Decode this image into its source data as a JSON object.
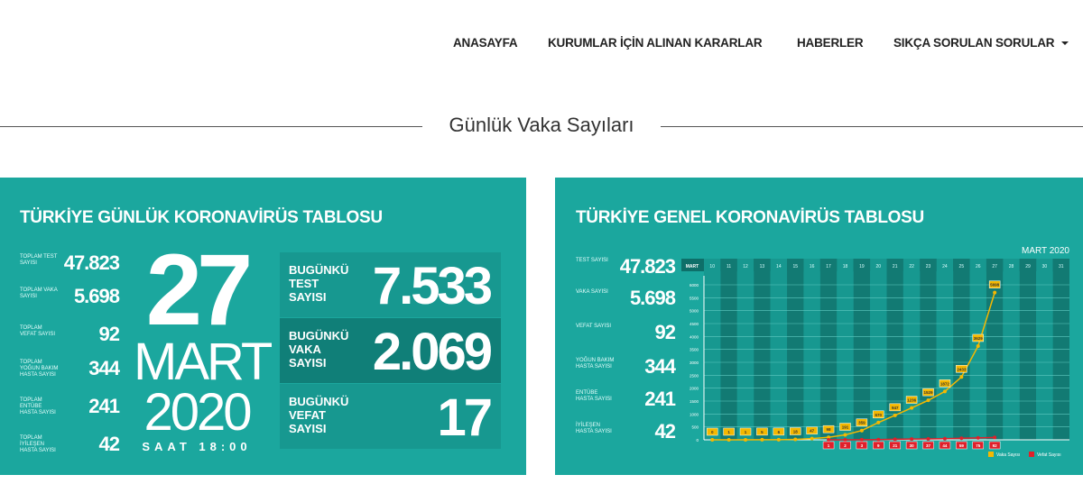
{
  "nav": {
    "items": [
      "ANASAYFA",
      "KURUMLAR İÇİN ALINAN KARARLAR",
      "HABERLER",
      "SIKÇA SORULAN SORULAR"
    ]
  },
  "section_title": "Günlük Vaka Sayıları",
  "left_card": {
    "title": "TÜRKİYE GÜNLÜK KORONAVİRÜS TABLOSU",
    "stats": [
      {
        "label": "TOPLAM TEST SAYISI",
        "value": "47.823"
      },
      {
        "label": "TOPLAM VAKA SAYISI",
        "value": "5.698"
      },
      {
        "label": "TOPLAM VEFAT SAYISI",
        "value": "92"
      },
      {
        "label": "TOPLAM YOĞUN BAKIM HASTA SAYISI",
        "value": "344"
      },
      {
        "label": "TOPLAM ENTÜBE HASTA SAYISI",
        "value": "241"
      },
      {
        "label": "TOPLAM İYİLEŞEN HASTA SAYISI",
        "value": "42"
      }
    ],
    "day": "27",
    "month": "MART",
    "year": "2020",
    "time": "SAAT 18:00",
    "today": [
      {
        "label": "BUGÜNKÜ TEST SAYISI",
        "value": "7.533"
      },
      {
        "label": "BUGÜNKÜ VAKA SAYISI",
        "value": "2.069"
      },
      {
        "label": "BUGÜNKÜ VEFAT SAYISI",
        "value": "17"
      }
    ]
  },
  "right_card": {
    "title": "TÜRKİYE GENEL KORONAVİRÜS TABLOSU",
    "stats": [
      {
        "label": "TEST SAYISI",
        "value": "47.823"
      },
      {
        "label": "VAKA SAYISI",
        "value": "5.698"
      },
      {
        "label": "VEFAT SAYISI",
        "value": "92"
      },
      {
        "label": "YOĞUN BAKIM HASTA SAYISI",
        "value": "344"
      },
      {
        "label": "ENTÜBE HASTA SAYISI",
        "value": "241"
      },
      {
        "label": "İYİLEŞEN HASTA SAYISI",
        "value": "42"
      }
    ]
  },
  "chart_data": {
    "type": "line",
    "title": "MART 2020",
    "x_header": "MART",
    "categories": [
      "10",
      "11",
      "12",
      "13",
      "14",
      "15",
      "16",
      "17",
      "18",
      "19",
      "20",
      "21",
      "22",
      "23",
      "24",
      "25",
      "26",
      "27",
      "28",
      "29",
      "30",
      "31"
    ],
    "ylim": [
      0,
      6000
    ],
    "yticks": [
      0,
      500,
      1000,
      1500,
      2000,
      2500,
      3000,
      3500,
      4000,
      4500,
      5000,
      5500,
      6000
    ],
    "series": [
      {
        "name": "Vaka Sayısı",
        "color": "#f5b800",
        "values": [
          0,
          1,
          1,
          5,
          6,
          18,
          47,
          98,
          191,
          359,
          670,
          947,
          1236,
          1529,
          1872,
          2433,
          3629,
          5698,
          null,
          null,
          null,
          null
        ]
      },
      {
        "name": "Vefat Sayısı",
        "color": "#e0202a",
        "values": [
          null,
          null,
          null,
          null,
          null,
          null,
          null,
          1,
          2,
          3,
          9,
          21,
          30,
          37,
          44,
          59,
          75,
          92,
          null,
          null,
          null,
          null
        ]
      }
    ],
    "legend": "bottom-right"
  },
  "colors": {
    "card": "#1ba79e",
    "accent": "#f5b800",
    "death": "#e0202a"
  }
}
